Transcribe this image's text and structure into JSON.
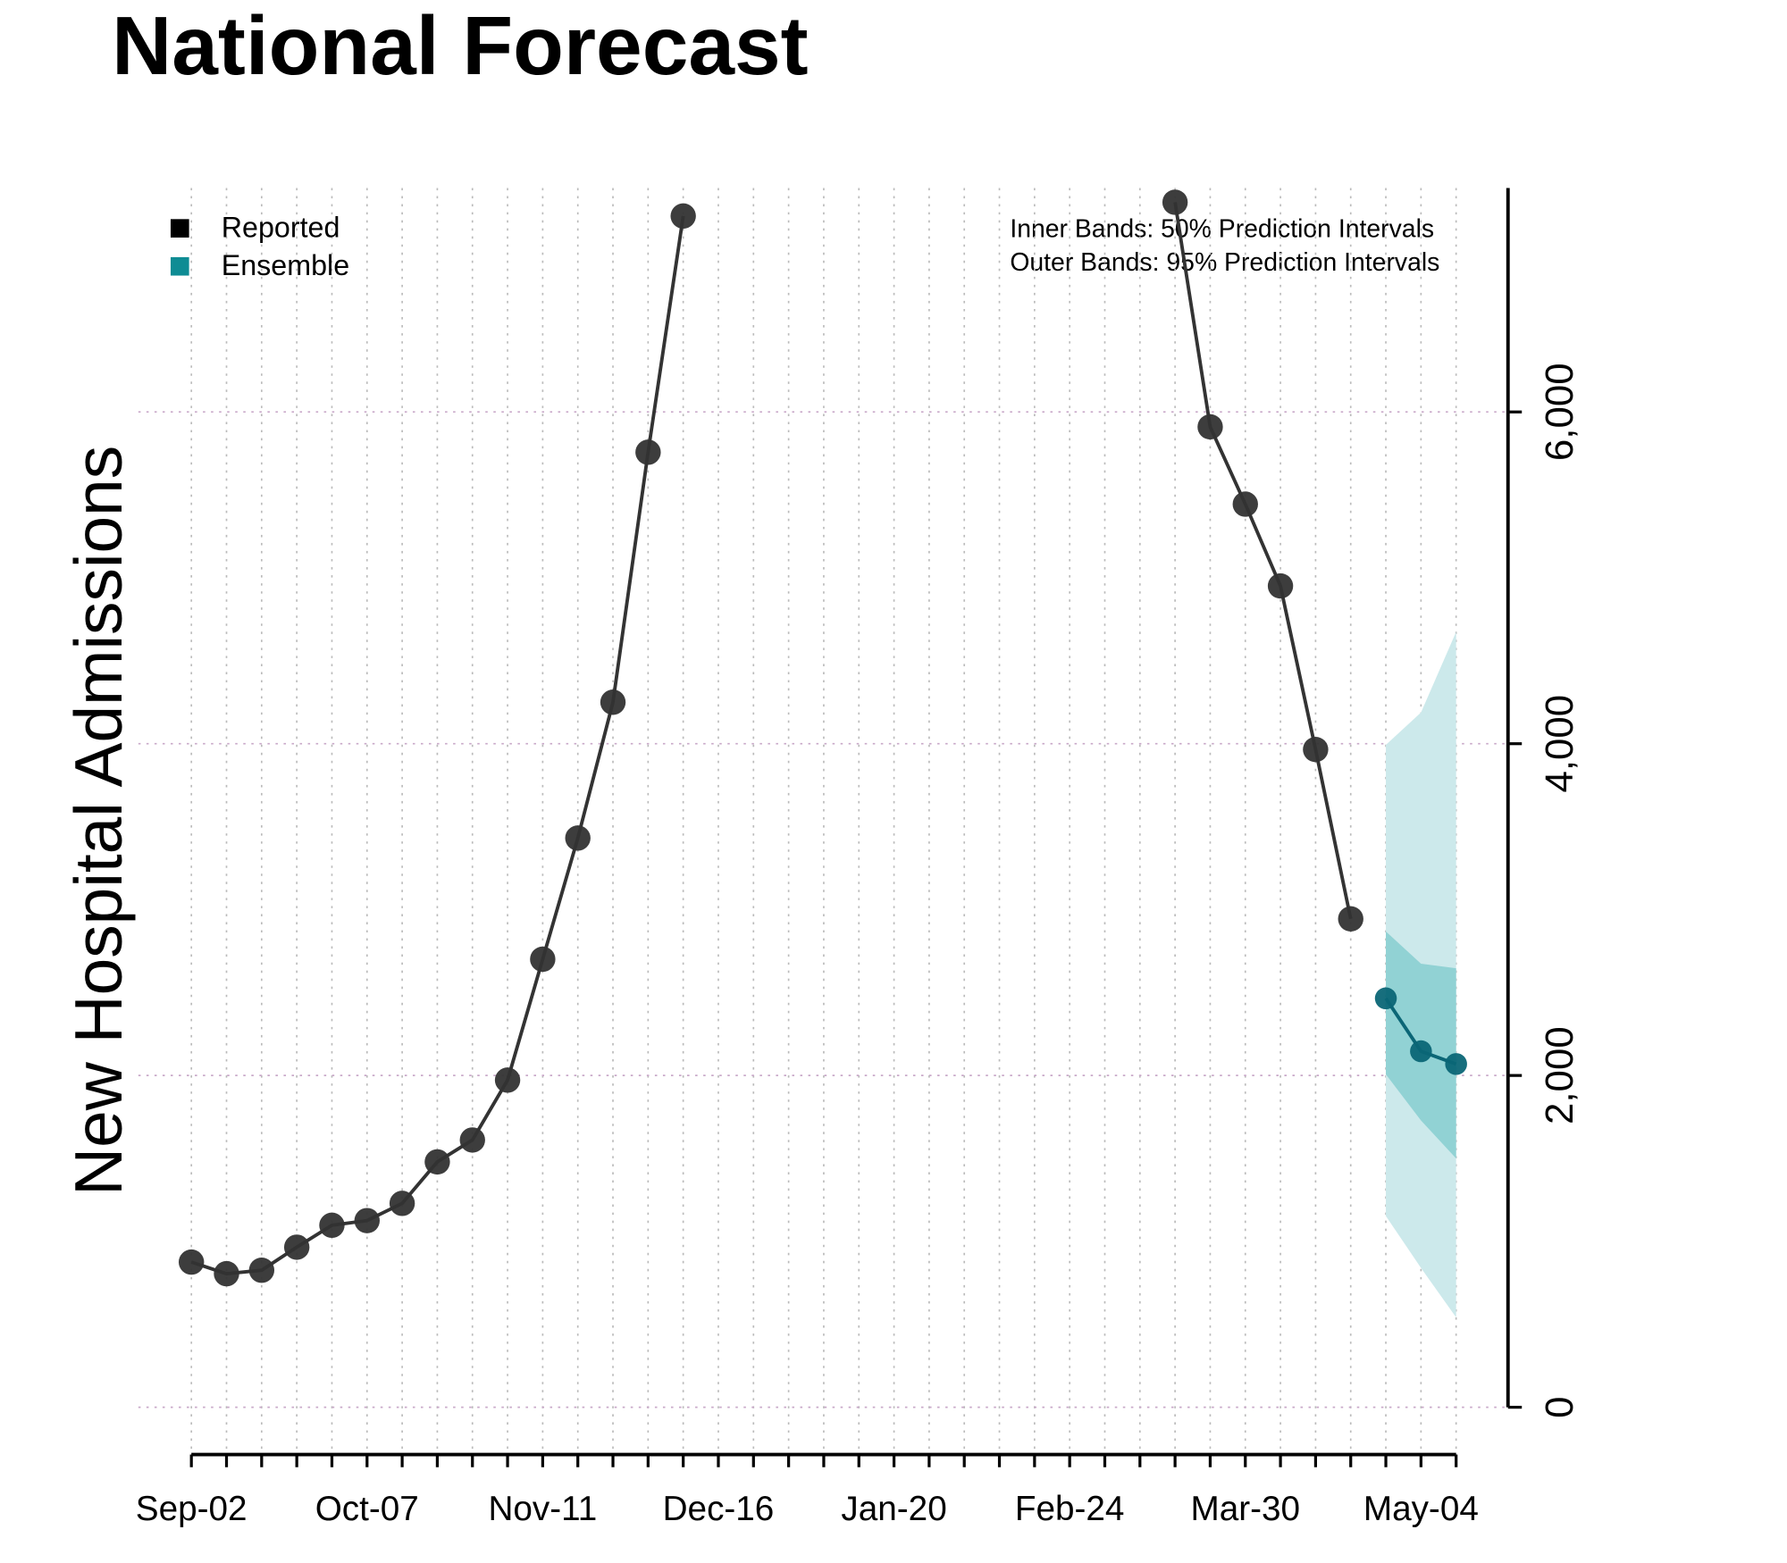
{
  "chart_data": {
    "type": "line",
    "title": "National Forecast",
    "ylabel": "New Hospital Admissions",
    "annotations": [
      "Inner Bands: 50% Prediction Intervals",
      "Outer Bands: 95% Prediction Intervals"
    ],
    "categories": [
      "Sep-02",
      null,
      null,
      null,
      null,
      "Oct-07",
      null,
      null,
      null,
      null,
      "Nov-11",
      null,
      null,
      null,
      null,
      "Dec-16",
      null,
      null,
      null,
      null,
      "Jan-20",
      null,
      null,
      null,
      null,
      "Feb-24",
      null,
      null,
      null,
      null,
      "Mar-30",
      null,
      null,
      null,
      null,
      "May-04",
      null
    ],
    "series": [
      {
        "name": "Reported",
        "color": "#333333",
        "legend_color": "#000000",
        "values": [
          875,
          805,
          826,
          965,
          1097,
          1125,
          1229,
          1479,
          1611,
          1972,
          2701,
          3431,
          4250,
          5757,
          7181,
          null,
          null,
          null,
          null,
          null,
          null,
          null,
          null,
          null,
          null,
          null,
          null,
          null,
          7264,
          5910,
          5444,
          4951,
          3965,
          2944,
          null,
          null,
          null
        ]
      },
      {
        "name": "Ensemble",
        "color": "#0b6676",
        "legend_color": "#0e8c94",
        "values": [
          null,
          null,
          null,
          null,
          null,
          null,
          null,
          null,
          null,
          null,
          null,
          null,
          null,
          null,
          null,
          null,
          null,
          null,
          null,
          null,
          null,
          null,
          null,
          null,
          null,
          null,
          null,
          null,
          null,
          null,
          null,
          null,
          null,
          null,
          2465,
          2146,
          2069
        ],
        "outer_color": "#cce9eb",
        "inner_color": "#91d2d4",
        "outer_lower": [
          null,
          null,
          null,
          null,
          null,
          null,
          null,
          null,
          null,
          null,
          null,
          null,
          null,
          null,
          null,
          null,
          null,
          null,
          null,
          null,
          null,
          null,
          null,
          null,
          null,
          null,
          null,
          null,
          null,
          null,
          null,
          null,
          null,
          null,
          1153,
          840,
          542
        ],
        "outer_upper": [
          null,
          null,
          null,
          null,
          null,
          null,
          null,
          null,
          null,
          null,
          null,
          null,
          null,
          null,
          null,
          null,
          null,
          null,
          null,
          null,
          null,
          null,
          null,
          null,
          null,
          null,
          null,
          null,
          null,
          null,
          null,
          null,
          null,
          null,
          3993,
          4188,
          4674
        ],
        "inner_lower": [
          null,
          null,
          null,
          null,
          null,
          null,
          null,
          null,
          null,
          null,
          null,
          null,
          null,
          null,
          null,
          null,
          null,
          null,
          null,
          null,
          null,
          null,
          null,
          null,
          null,
          null,
          null,
          null,
          null,
          null,
          null,
          null,
          null,
          null,
          2007,
          1729,
          1500
        ],
        "inner_upper": [
          null,
          null,
          null,
          null,
          null,
          null,
          null,
          null,
          null,
          null,
          null,
          null,
          null,
          null,
          null,
          null,
          null,
          null,
          null,
          null,
          null,
          null,
          null,
          null,
          null,
          null,
          null,
          null,
          null,
          null,
          null,
          null,
          null,
          null,
          2868,
          2674,
          2646
        ]
      }
    ],
    "ylim": [
      -285,
      7350
    ],
    "yticks": [
      0,
      {
        "value": 2000,
        "label": "2,000"
      },
      {
        "value": 4000,
        "label": "4,000"
      },
      {
        "value": 6000,
        "label": "6,000"
      }
    ],
    "grid": true,
    "legend": "top-left"
  }
}
